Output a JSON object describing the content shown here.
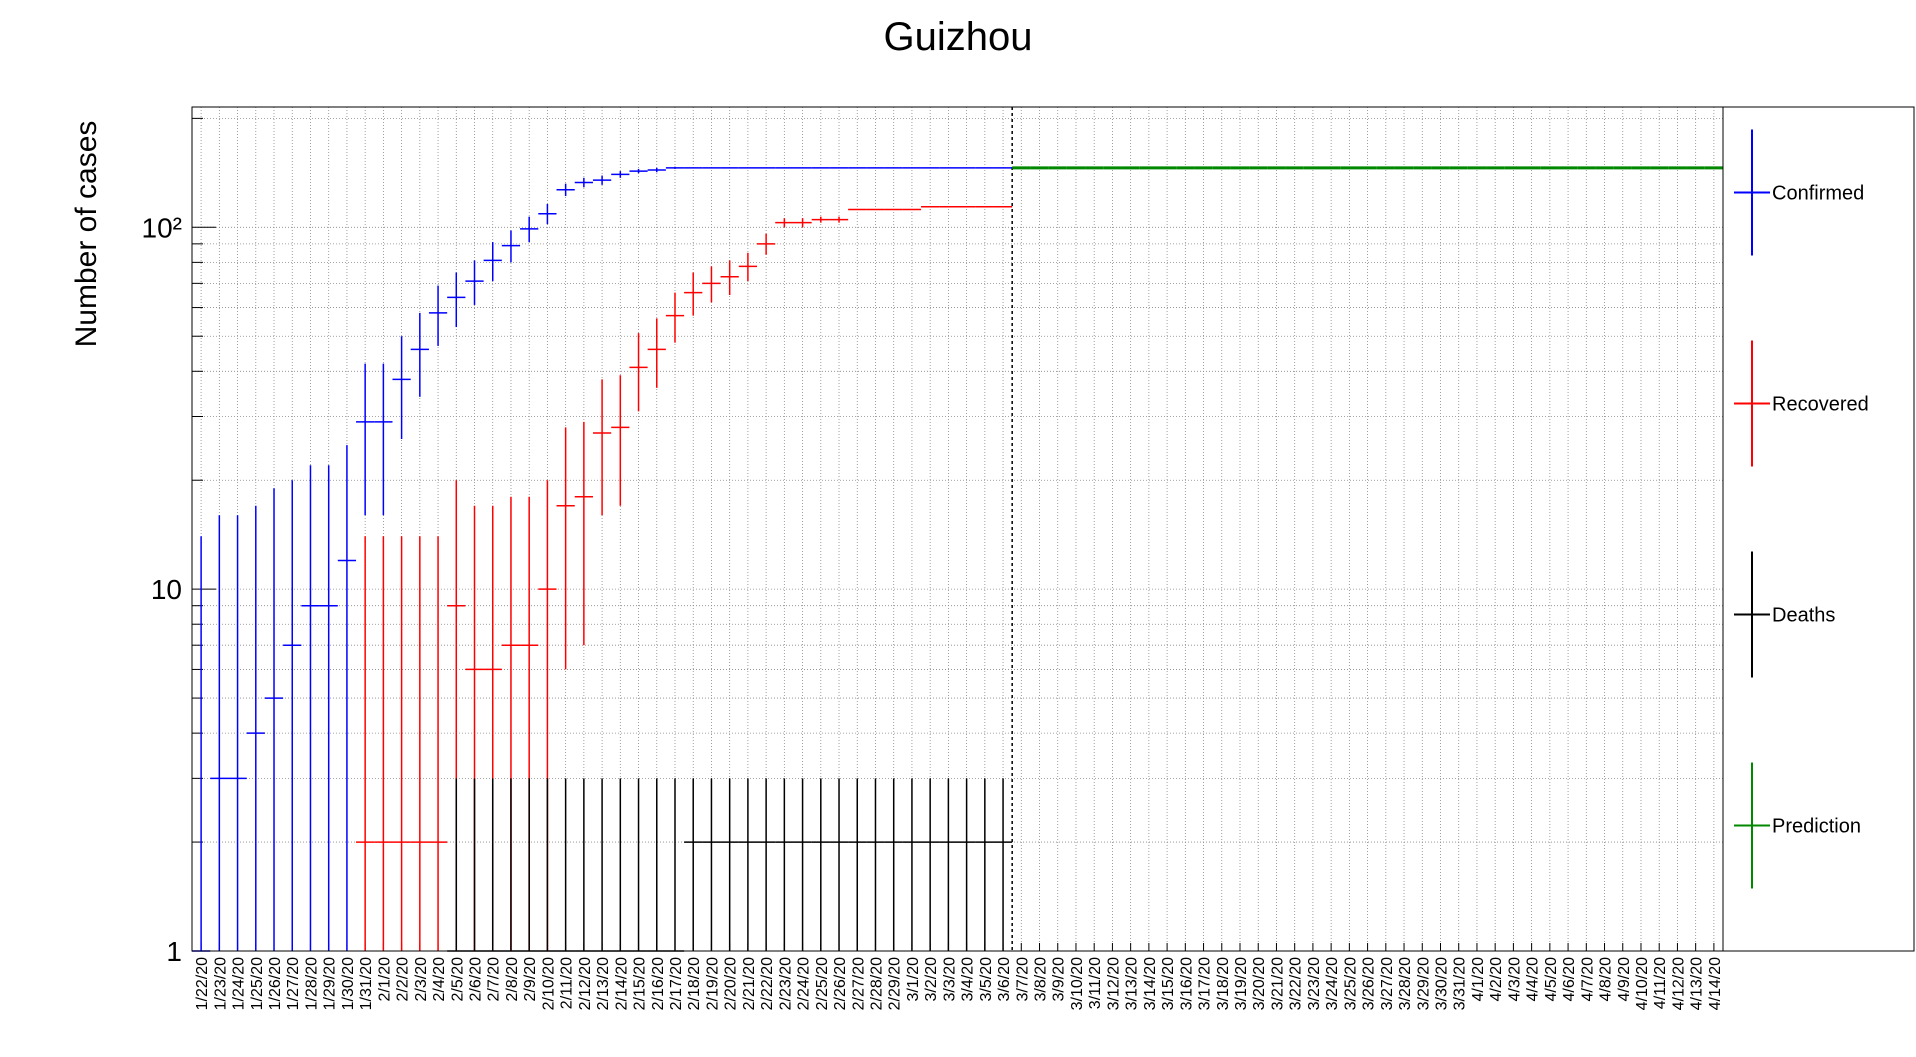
{
  "chart_data": {
    "type": "errorbar",
    "title": "Guizhou",
    "y_label": "Number of cases",
    "log_y": true,
    "grid": true,
    "ylim": [
      1,
      215
    ],
    "yticks": [
      1,
      10,
      {
        "value": 100,
        "label": "10²"
      }
    ],
    "yticks_minor": [
      2,
      3,
      4,
      5,
      6,
      7,
      8,
      9,
      20,
      30,
      40,
      50,
      60,
      70,
      80,
      90,
      200
    ],
    "categories": [
      "1/22/20",
      "1/23/20",
      "1/24/20",
      "1/25/20",
      "1/26/20",
      "1/27/20",
      "1/28/20",
      "1/29/20",
      "1/30/20",
      "1/31/20",
      "2/1/20",
      "2/2/20",
      "2/3/20",
      "2/4/20",
      "2/5/20",
      "2/6/20",
      "2/7/20",
      "2/8/20",
      "2/9/20",
      "2/10/20",
      "2/11/20",
      "2/12/20",
      "2/13/20",
      "2/14/20",
      "2/15/20",
      "2/16/20",
      "2/17/20",
      "2/18/20",
      "2/19/20",
      "2/20/20",
      "2/21/20",
      "2/22/20",
      "2/23/20",
      "2/24/20",
      "2/25/20",
      "2/26/20",
      "2/27/20",
      "2/28/20",
      "2/29/20",
      "3/1/20",
      "3/2/20",
      "3/3/20",
      "3/4/20",
      "3/5/20",
      "3/6/20",
      "3/7/20",
      "3/8/20",
      "3/9/20",
      "3/10/20",
      "3/11/20",
      "3/12/20",
      "3/13/20",
      "3/14/20",
      "3/15/20",
      "3/16/20",
      "3/17/20",
      "3/18/20",
      "3/19/20",
      "3/20/20",
      "3/21/20",
      "3/22/20",
      "3/23/20",
      "3/24/20",
      "3/25/20",
      "3/26/20",
      "3/27/20",
      "3/28/20",
      "3/29/20",
      "3/30/20",
      "3/31/20",
      "4/1/20",
      "4/2/20",
      "4/3/20",
      "4/4/20",
      "4/5/20",
      "4/6/20",
      "4/7/20",
      "4/8/20",
      "4/9/20",
      "4/10/20",
      "4/11/20",
      "4/12/20",
      "4/13/20",
      "4/14/20"
    ],
    "series": [
      {
        "name": "Confirmed",
        "color": "#0000ff",
        "values": [
          1,
          3,
          3,
          4,
          5,
          7,
          9,
          9,
          12,
          29,
          29,
          38,
          46,
          58,
          64,
          71,
          81,
          89,
          99,
          109,
          127,
          133,
          135,
          140,
          143,
          144,
          146,
          146,
          146,
          146,
          146,
          146,
          146,
          146,
          146,
          146,
          146,
          146,
          146,
          146,
          146,
          146,
          146,
          146,
          146,
          null,
          null,
          null,
          null,
          null,
          null,
          null,
          null,
          null,
          null,
          null,
          null,
          null,
          null,
          null,
          null,
          null,
          null,
          null,
          null,
          null,
          null,
          null,
          null,
          null,
          null,
          null,
          null,
          null,
          null,
          null,
          null,
          null,
          null,
          null,
          null,
          null,
          null,
          null
        ],
        "errors": [
          13,
          13,
          13,
          13,
          14,
          13,
          13,
          13,
          13,
          13,
          13,
          12,
          12,
          11,
          11,
          10,
          10,
          9,
          8,
          7,
          5,
          4,
          4,
          3,
          2,
          2,
          1,
          0,
          0,
          0,
          0,
          0,
          0,
          0,
          0,
          0,
          0,
          0,
          0,
          0,
          0,
          0,
          0,
          0,
          0,
          null,
          null,
          null,
          null,
          null,
          null,
          null,
          null,
          null,
          null,
          null,
          null,
          null,
          null,
          null,
          null,
          null,
          null,
          null,
          null,
          null,
          null,
          null,
          null,
          null,
          null,
          null,
          null,
          null,
          null,
          null,
          null,
          null,
          null,
          null,
          null,
          null,
          null,
          null
        ]
      },
      {
        "name": "Recovered",
        "color": "#ff0000",
        "values": [
          null,
          null,
          null,
          null,
          null,
          null,
          null,
          null,
          null,
          2,
          2,
          2,
          2,
          2,
          9,
          6,
          6,
          7,
          7,
          10,
          17,
          18,
          27,
          28,
          41,
          46,
          57,
          66,
          70,
          73,
          78,
          90,
          103,
          103,
          105,
          105,
          112,
          112,
          112,
          112,
          114,
          114,
          114,
          114,
          114,
          null,
          null,
          null,
          null,
          null,
          null,
          null,
          null,
          null,
          null,
          null,
          null,
          null,
          null,
          null,
          null,
          null,
          null,
          null,
          null,
          null,
          null,
          null,
          null,
          null,
          null,
          null,
          null,
          null,
          null,
          null,
          null,
          null,
          null,
          null,
          null,
          null,
          null,
          null
        ],
        "errors": [
          null,
          null,
          null,
          null,
          null,
          null,
          null,
          null,
          null,
          12,
          12,
          12,
          12,
          12,
          11,
          11,
          11,
          11,
          11,
          10,
          11,
          11,
          11,
          11,
          10,
          10,
          9,
          9,
          8,
          8,
          7,
          6,
          3,
          3,
          2,
          2,
          0,
          0,
          0,
          0,
          0,
          0,
          0,
          0,
          0,
          null,
          null,
          null,
          null,
          null,
          null,
          null,
          null,
          null,
          null,
          null,
          null,
          null,
          null,
          null,
          null,
          null,
          null,
          null,
          null,
          null,
          null,
          null,
          null,
          null,
          null,
          null,
          null,
          null,
          null,
          null,
          null,
          null,
          null,
          null,
          null,
          null,
          null,
          null
        ]
      },
      {
        "name": "Deaths",
        "color": "#000000",
        "values": [
          null,
          null,
          null,
          null,
          null,
          null,
          null,
          null,
          null,
          null,
          null,
          null,
          null,
          null,
          1,
          1,
          1,
          1,
          1,
          1,
          1,
          1,
          1,
          1,
          1,
          1,
          1,
          2,
          2,
          2,
          2,
          2,
          2,
          2,
          2,
          2,
          2,
          2,
          2,
          2,
          2,
          2,
          2,
          2,
          2,
          null,
          null,
          null,
          null,
          null,
          null,
          null,
          null,
          null,
          null,
          null,
          null,
          null,
          null,
          null,
          null,
          null,
          null,
          null,
          null,
          null,
          null,
          null,
          null,
          null,
          null,
          null,
          null,
          null,
          null,
          null,
          null,
          null,
          null,
          null,
          null,
          null,
          null,
          null
        ],
        "errors": [
          null,
          null,
          null,
          null,
          null,
          null,
          null,
          null,
          null,
          null,
          null,
          null,
          null,
          null,
          2,
          2,
          2,
          2,
          2,
          2,
          2,
          2,
          2,
          2,
          2,
          2,
          2,
          1,
          1,
          1,
          1,
          1,
          1,
          1,
          1,
          1,
          1,
          1,
          1,
          1,
          1,
          1,
          1,
          1,
          1,
          null,
          null,
          null,
          null,
          null,
          null,
          null,
          null,
          null,
          null,
          null,
          null,
          null,
          null,
          null,
          null,
          null,
          null,
          null,
          null,
          null,
          null,
          null,
          null,
          null,
          null,
          null,
          null,
          null,
          null,
          null,
          null,
          null,
          null,
          null,
          null,
          null,
          null,
          null
        ]
      },
      {
        "name": "Prediction",
        "color": "#008800",
        "values": [
          null,
          null,
          null,
          null,
          null,
          null,
          null,
          null,
          null,
          null,
          null,
          null,
          null,
          null,
          null,
          null,
          null,
          null,
          null,
          null,
          null,
          null,
          null,
          null,
          null,
          null,
          null,
          null,
          null,
          null,
          null,
          null,
          null,
          null,
          null,
          null,
          null,
          null,
          null,
          null,
          null,
          null,
          null,
          null,
          null,
          146,
          146,
          146,
          146,
          146,
          146,
          146,
          146,
          146,
          146,
          146,
          146,
          146,
          146,
          146,
          146,
          146,
          146,
          146,
          146,
          146,
          146,
          146,
          146,
          146,
          146,
          146,
          146,
          146,
          146,
          146,
          146,
          146,
          146,
          146,
          146,
          146,
          146,
          146
        ]
      }
    ]
  }
}
